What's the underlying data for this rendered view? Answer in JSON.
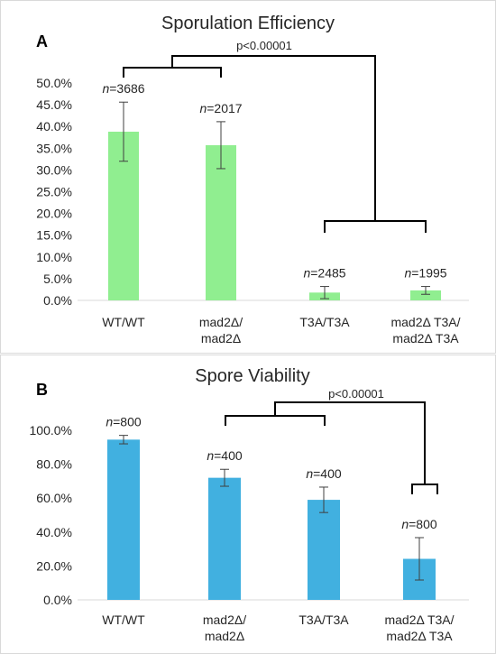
{
  "chart_data": [
    {
      "type": "bar",
      "panel": "A",
      "title": "Sporulation Efficiency",
      "categories": [
        [
          "WT/WT"
        ],
        [
          "mad2Δ/",
          "mad2Δ"
        ],
        [
          "T3A/T3A"
        ],
        [
          "mad2Δ T3A/",
          "mad2Δ T3A"
        ]
      ],
      "values": [
        38.8,
        35.7,
        1.8,
        2.3
      ],
      "errors": [
        6.8,
        5.4,
        1.4,
        0.9
      ],
      "n": [
        "3686",
        "2017",
        "2485",
        "1995"
      ],
      "ylim": [
        0,
        50
      ],
      "ytick_step": 5,
      "ytick_labels": [
        "0.0%",
        "5.0%",
        "10.0%",
        "15.0%",
        "20.0%",
        "25.0%",
        "30.0%",
        "35.0%",
        "40.0%",
        "45.0%",
        "50.0%"
      ],
      "bar_color": "#90EE90",
      "annotation": "p<0.00001",
      "grid": false
    },
    {
      "type": "bar",
      "panel": "B",
      "title": "Spore Viability",
      "categories": [
        [
          "WT/WT"
        ],
        [
          "mad2Δ/",
          "mad2Δ"
        ],
        [
          "T3A/T3A"
        ],
        [
          "mad2Δ T3A/",
          "mad2Δ T3A"
        ]
      ],
      "values": [
        94.5,
        72.0,
        59.0,
        24.2
      ],
      "errors": [
        2.5,
        5.0,
        7.5,
        12.5
      ],
      "n": [
        "800",
        "400",
        "400",
        "800"
      ],
      "ylim": [
        0,
        100
      ],
      "ytick_step": 20,
      "ytick_labels": [
        "0.0%",
        "20.0%",
        "40.0%",
        "60.0%",
        "80.0%",
        "100.0%"
      ],
      "bar_color": "#41B0E0",
      "annotation": "p<0.00001",
      "grid": false
    }
  ]
}
